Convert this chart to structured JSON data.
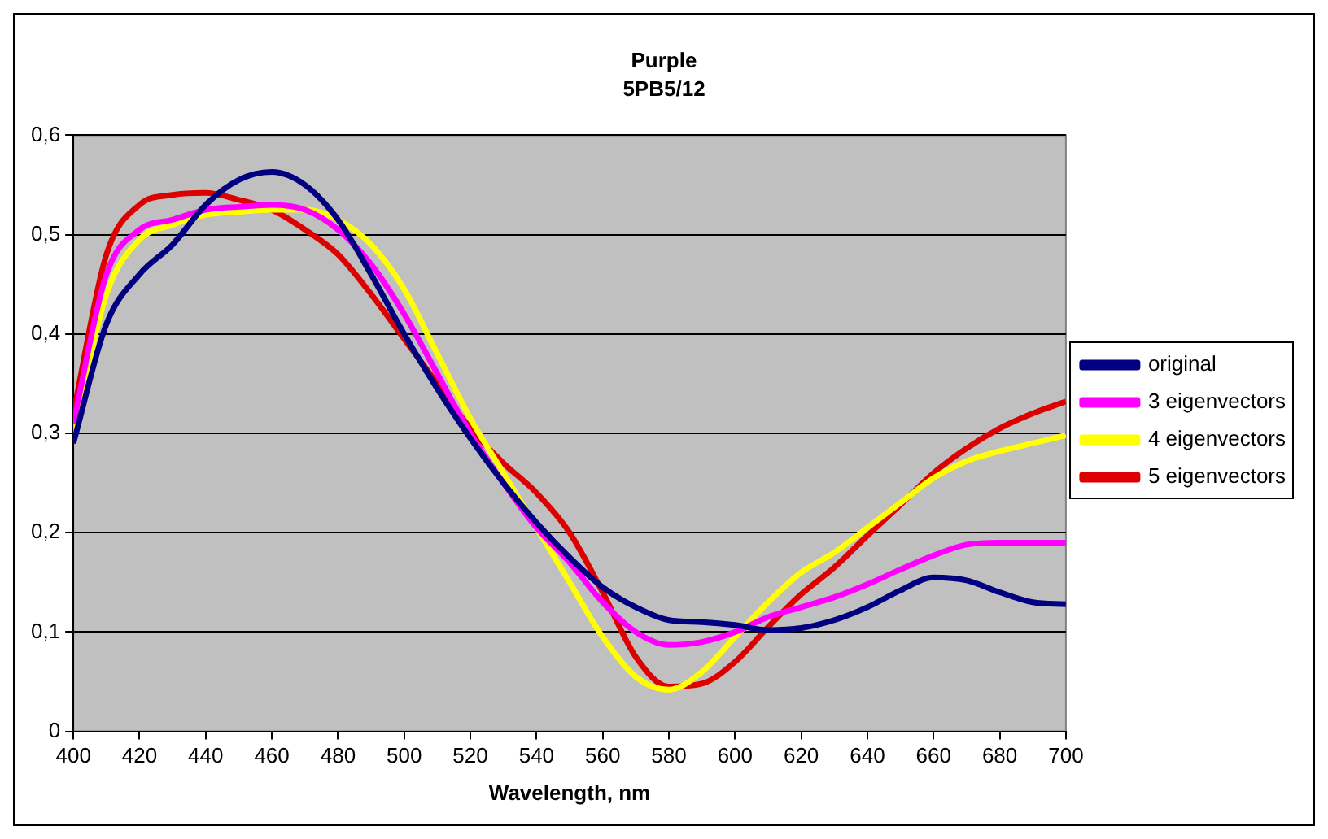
{
  "chart_data": {
    "type": "line",
    "title": "Purple",
    "subtitle": "5PB5/12",
    "xlabel": "Wavelength, nm",
    "x": [
      400,
      410,
      420,
      430,
      440,
      450,
      460,
      470,
      480,
      490,
      500,
      510,
      520,
      530,
      540,
      550,
      560,
      570,
      580,
      590,
      600,
      610,
      620,
      630,
      640,
      650,
      660,
      670,
      680,
      690,
      700
    ],
    "series": [
      {
        "name": "original",
        "color": "#000080",
        "values": [
          0.29,
          0.41,
          0.46,
          0.49,
          0.53,
          0.555,
          0.563,
          0.55,
          0.515,
          0.46,
          0.4,
          0.345,
          0.295,
          0.25,
          0.21,
          0.175,
          0.145,
          0.125,
          0.112,
          0.11,
          0.107,
          0.102,
          0.104,
          0.112,
          0.125,
          0.142,
          0.155,
          0.152,
          0.14,
          0.13,
          0.128
        ]
      },
      {
        "name": "3 eigenvectors",
        "color": "#ff00ff",
        "values": [
          0.31,
          0.46,
          0.505,
          0.515,
          0.525,
          0.528,
          0.53,
          0.525,
          0.505,
          0.47,
          0.42,
          0.36,
          0.3,
          0.25,
          0.205,
          0.17,
          0.13,
          0.1,
          0.087,
          0.09,
          0.1,
          0.115,
          0.125,
          0.135,
          0.148,
          0.163,
          0.177,
          0.188,
          0.19,
          0.19,
          0.19
        ]
      },
      {
        "name": "4 eigenvectors",
        "color": "#ffff00",
        "values": [
          0.3,
          0.44,
          0.495,
          0.51,
          0.52,
          0.523,
          0.525,
          0.525,
          0.515,
          0.49,
          0.445,
          0.38,
          0.315,
          0.26,
          0.205,
          0.15,
          0.095,
          0.055,
          0.042,
          0.06,
          0.095,
          0.13,
          0.16,
          0.18,
          0.205,
          0.23,
          0.255,
          0.272,
          0.282,
          0.29,
          0.298
        ]
      },
      {
        "name": "5 eigenvectors",
        "color": "#dd0000",
        "values": [
          0.32,
          0.48,
          0.53,
          0.54,
          0.542,
          0.535,
          0.525,
          0.505,
          0.48,
          0.44,
          0.395,
          0.35,
          0.305,
          0.27,
          0.24,
          0.2,
          0.14,
          0.075,
          0.045,
          0.048,
          0.07,
          0.105,
          0.138,
          0.165,
          0.197,
          0.228,
          0.26,
          0.285,
          0.305,
          0.32,
          0.332
        ]
      }
    ],
    "xlim": [
      400,
      700
    ],
    "xticks": [
      400,
      420,
      440,
      460,
      480,
      500,
      520,
      540,
      560,
      580,
      600,
      620,
      640,
      660,
      680,
      700
    ],
    "ylim": [
      0,
      0.6
    ],
    "yticks": [
      0,
      {
        "value": 0.1,
        "label": "0,1"
      },
      {
        "value": 0.2,
        "label": "0,2"
      },
      {
        "value": 0.3,
        "label": "0,3"
      },
      {
        "value": 0.4,
        "label": "0,4"
      },
      {
        "value": 0.5,
        "label": "0,5"
      },
      {
        "value": 0.6,
        "label": "0,6"
      }
    ],
    "grid": "y",
    "legend": "right",
    "marker": "none",
    "line_style": "solid"
  }
}
